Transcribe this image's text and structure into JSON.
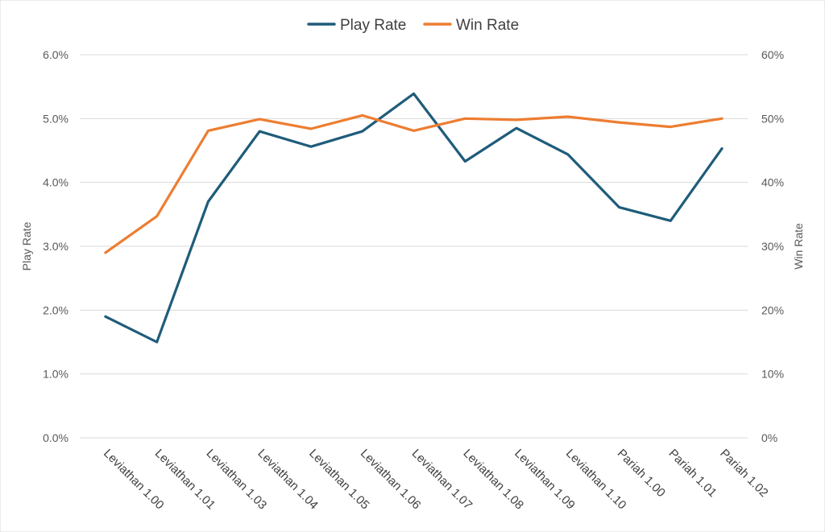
{
  "chart_data": {
    "type": "line",
    "title": "",
    "categories": [
      "Leviathan 1.00",
      "Leviathan 1.01",
      "Leviathan 1.03",
      "Leviathan 1.04",
      "Leviathan 1.05",
      "Leviathan 1.06",
      "Leviathan 1.07",
      "Leviathan 1.08",
      "Leviathan 1.09",
      "Leviathan 1.10",
      "Pariah 1.00",
      "Pariah 1.01",
      "Pariah 1.02"
    ],
    "series": [
      {
        "name": "Play Rate",
        "axis": "left",
        "color": "#1F5C7A",
        "values": [
          1.9,
          1.5,
          3.7,
          4.8,
          4.56,
          4.8,
          5.39,
          4.33,
          4.85,
          4.44,
          3.61,
          3.4,
          4.53
        ]
      },
      {
        "name": "Win Rate",
        "axis": "right",
        "color": "#ED7D31",
        "values": [
          29.0,
          34.7,
          48.1,
          49.9,
          48.4,
          50.5,
          48.1,
          50.0,
          49.8,
          50.3,
          49.4,
          48.7,
          50.0
        ]
      }
    ],
    "y_left": {
      "label": "Play Rate",
      "range": [
        0,
        6
      ],
      "ticks": [
        "0.0%",
        "1.0%",
        "2.0%",
        "3.0%",
        "4.0%",
        "5.0%",
        "6.0%"
      ]
    },
    "y_right": {
      "label": "Win Rate",
      "range": [
        0,
        60
      ],
      "ticks": [
        "0%",
        "10%",
        "20%",
        "30%",
        "40%",
        "50%",
        "60%"
      ]
    },
    "grid": true,
    "legend_position": "top"
  }
}
